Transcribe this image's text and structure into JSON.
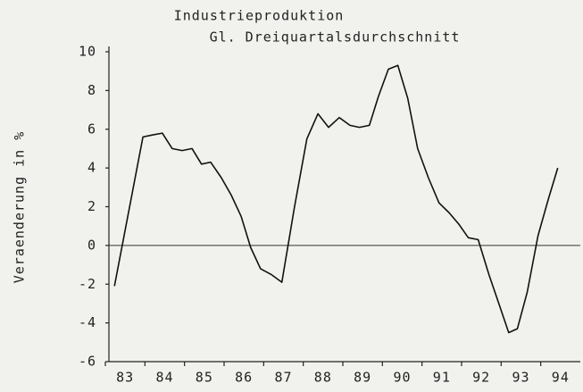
{
  "chart_data": {
    "type": "line",
    "title": "Industrieproduktion",
    "subtitle": "Gl. Dreiquartalsdurchschnitt",
    "y_label": "Veraenderung in %",
    "x": [
      83.23,
      83.95,
      84.17,
      84.44,
      84.69,
      84.94,
      85.19,
      85.43,
      85.66,
      85.93,
      86.18,
      86.43,
      86.67,
      86.92,
      87.19,
      87.46,
      87.78,
      88.09,
      88.37,
      88.64,
      88.91,
      89.18,
      89.42,
      89.67,
      89.9,
      90.15,
      90.39,
      90.64,
      90.89,
      91.16,
      91.43,
      91.68,
      91.93,
      92.17,
      92.42,
      92.69,
      92.94,
      93.19,
      93.41,
      93.66,
      93.93,
      94.18,
      94.43
    ],
    "series": [
      {
        "color": "#111111",
        "values": [
          -2.1,
          5.6,
          5.7,
          5.8,
          5.0,
          4.9,
          5.0,
          4.2,
          4.3,
          3.5,
          2.6,
          1.5,
          -0.1,
          -1.2,
          -1.5,
          -1.9,
          2.0,
          5.5,
          6.8,
          6.1,
          6.6,
          6.2,
          6.1,
          6.2,
          7.7,
          9.1,
          9.3,
          7.6,
          5.0,
          3.5,
          2.2,
          1.7,
          1.1,
          0.4,
          0.3,
          -1.5,
          -3.0,
          -4.5,
          -4.3,
          -2.4,
          0.5,
          2.3,
          4.0
        ]
      }
    ],
    "xlim": [
      83,
      95
    ],
    "xticks": [
      {
        "value": 83,
        "label": "83"
      },
      {
        "value": 84,
        "label": "84"
      },
      {
        "value": 85,
        "label": "85"
      },
      {
        "value": 86,
        "label": "86"
      },
      {
        "value": 87,
        "label": "87"
      },
      {
        "value": 88,
        "label": "88"
      },
      {
        "value": 89,
        "label": "89"
      },
      {
        "value": 90,
        "label": "90"
      },
      {
        "value": 91,
        "label": "91"
      },
      {
        "value": 92,
        "label": "92"
      },
      {
        "value": 93,
        "label": "93"
      },
      {
        "value": 94,
        "label": "94"
      }
    ],
    "ylim": [
      -6,
      10
    ],
    "yticks": [
      -6,
      -4,
      -2,
      0,
      2,
      4,
      6,
      8,
      10
    ],
    "reference_line": 0,
    "grid": false
  }
}
